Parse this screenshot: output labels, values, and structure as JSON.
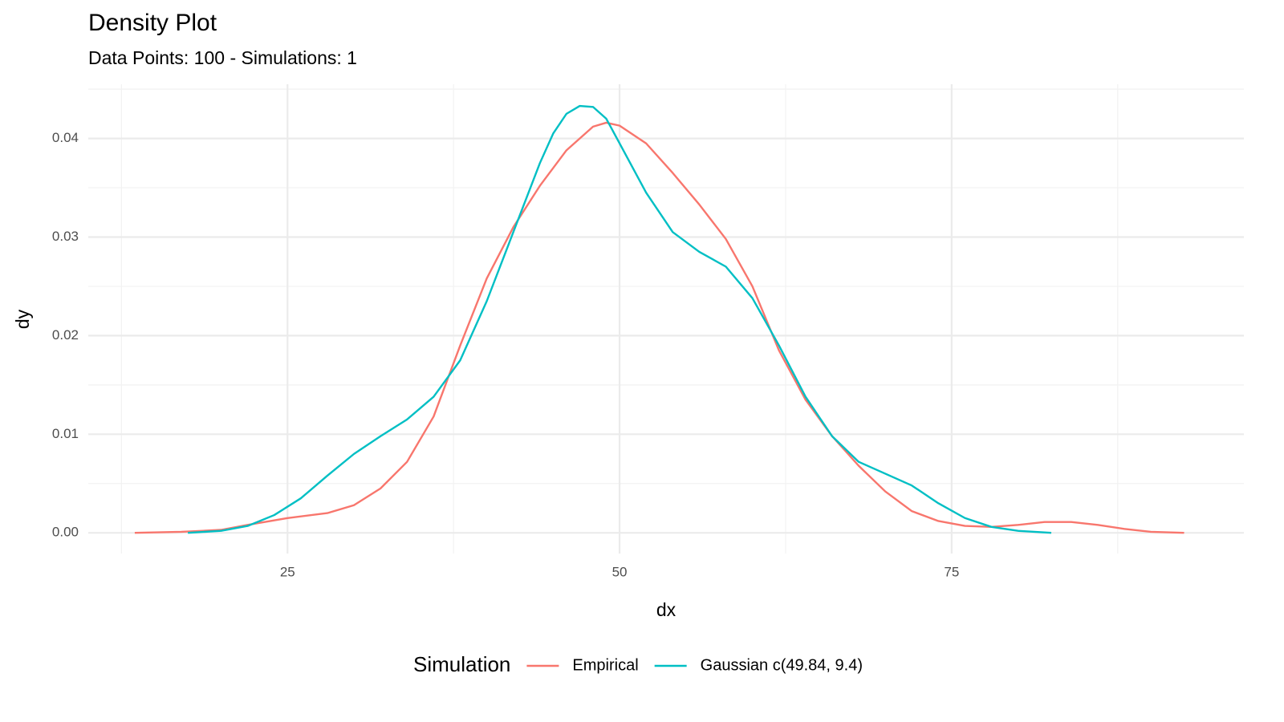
{
  "chart_data": {
    "type": "line",
    "title": "Density Plot",
    "subtitle": "Data Points: 100 - Simulations: 1",
    "x_label": "dx",
    "y_label": "dy",
    "legend_title": "Simulation",
    "legend_position": "bottom",
    "grid": true,
    "xlim": [
      10,
      97
    ],
    "xticks": [
      25,
      50,
      75
    ],
    "ylim": [
      -0.0021,
      0.0455
    ],
    "yticks": [
      {
        "value": 0,
        "label": "0.00"
      },
      0.01,
      0.02,
      0.03,
      0.04
    ],
    "series": [
      {
        "name": "Empirical",
        "color": "#F8766D",
        "x": [
          13.5,
          17,
          20,
          22,
          25,
          28,
          30,
          32,
          34,
          36,
          38,
          40,
          42,
          44,
          46,
          48,
          49,
          50,
          52,
          54,
          56,
          58,
          60,
          62,
          64,
          66,
          68,
          70,
          72,
          74,
          76,
          78,
          80,
          82,
          84,
          86,
          88,
          90,
          92.5
        ],
        "values": [
          0,
          0.0001,
          0.0003,
          0.0008,
          0.0015,
          0.002,
          0.0028,
          0.0045,
          0.0072,
          0.0118,
          0.019,
          0.0258,
          0.031,
          0.0352,
          0.0388,
          0.0412,
          0.0416,
          0.0413,
          0.0395,
          0.0365,
          0.0333,
          0.0298,
          0.025,
          0.0185,
          0.0135,
          0.0098,
          0.0068,
          0.0042,
          0.0022,
          0.0012,
          0.0007,
          0.0006,
          0.0008,
          0.0011,
          0.0011,
          0.0008,
          0.0004,
          0.0001,
          0
        ]
      },
      {
        "name": "Gaussian c(49.84, 9.4)",
        "color": "#00BFC4",
        "x": [
          17.5,
          20,
          22,
          24,
          26,
          28,
          30,
          32,
          34,
          36,
          38,
          40,
          42,
          44,
          45,
          46,
          47,
          48,
          49,
          50,
          52,
          54,
          56,
          58,
          60,
          62,
          64,
          66,
          68,
          70,
          72,
          74,
          76,
          78,
          80,
          82.5
        ],
        "values": [
          0,
          0.0002,
          0.0007,
          0.0018,
          0.0035,
          0.0058,
          0.008,
          0.0098,
          0.0115,
          0.0138,
          0.0175,
          0.0235,
          0.0305,
          0.0375,
          0.0405,
          0.0425,
          0.0433,
          0.0432,
          0.042,
          0.0395,
          0.0345,
          0.0305,
          0.0285,
          0.027,
          0.0238,
          0.019,
          0.0138,
          0.0098,
          0.0072,
          0.006,
          0.0048,
          0.003,
          0.0015,
          0.0006,
          0.0002,
          0
        ]
      }
    ]
  }
}
